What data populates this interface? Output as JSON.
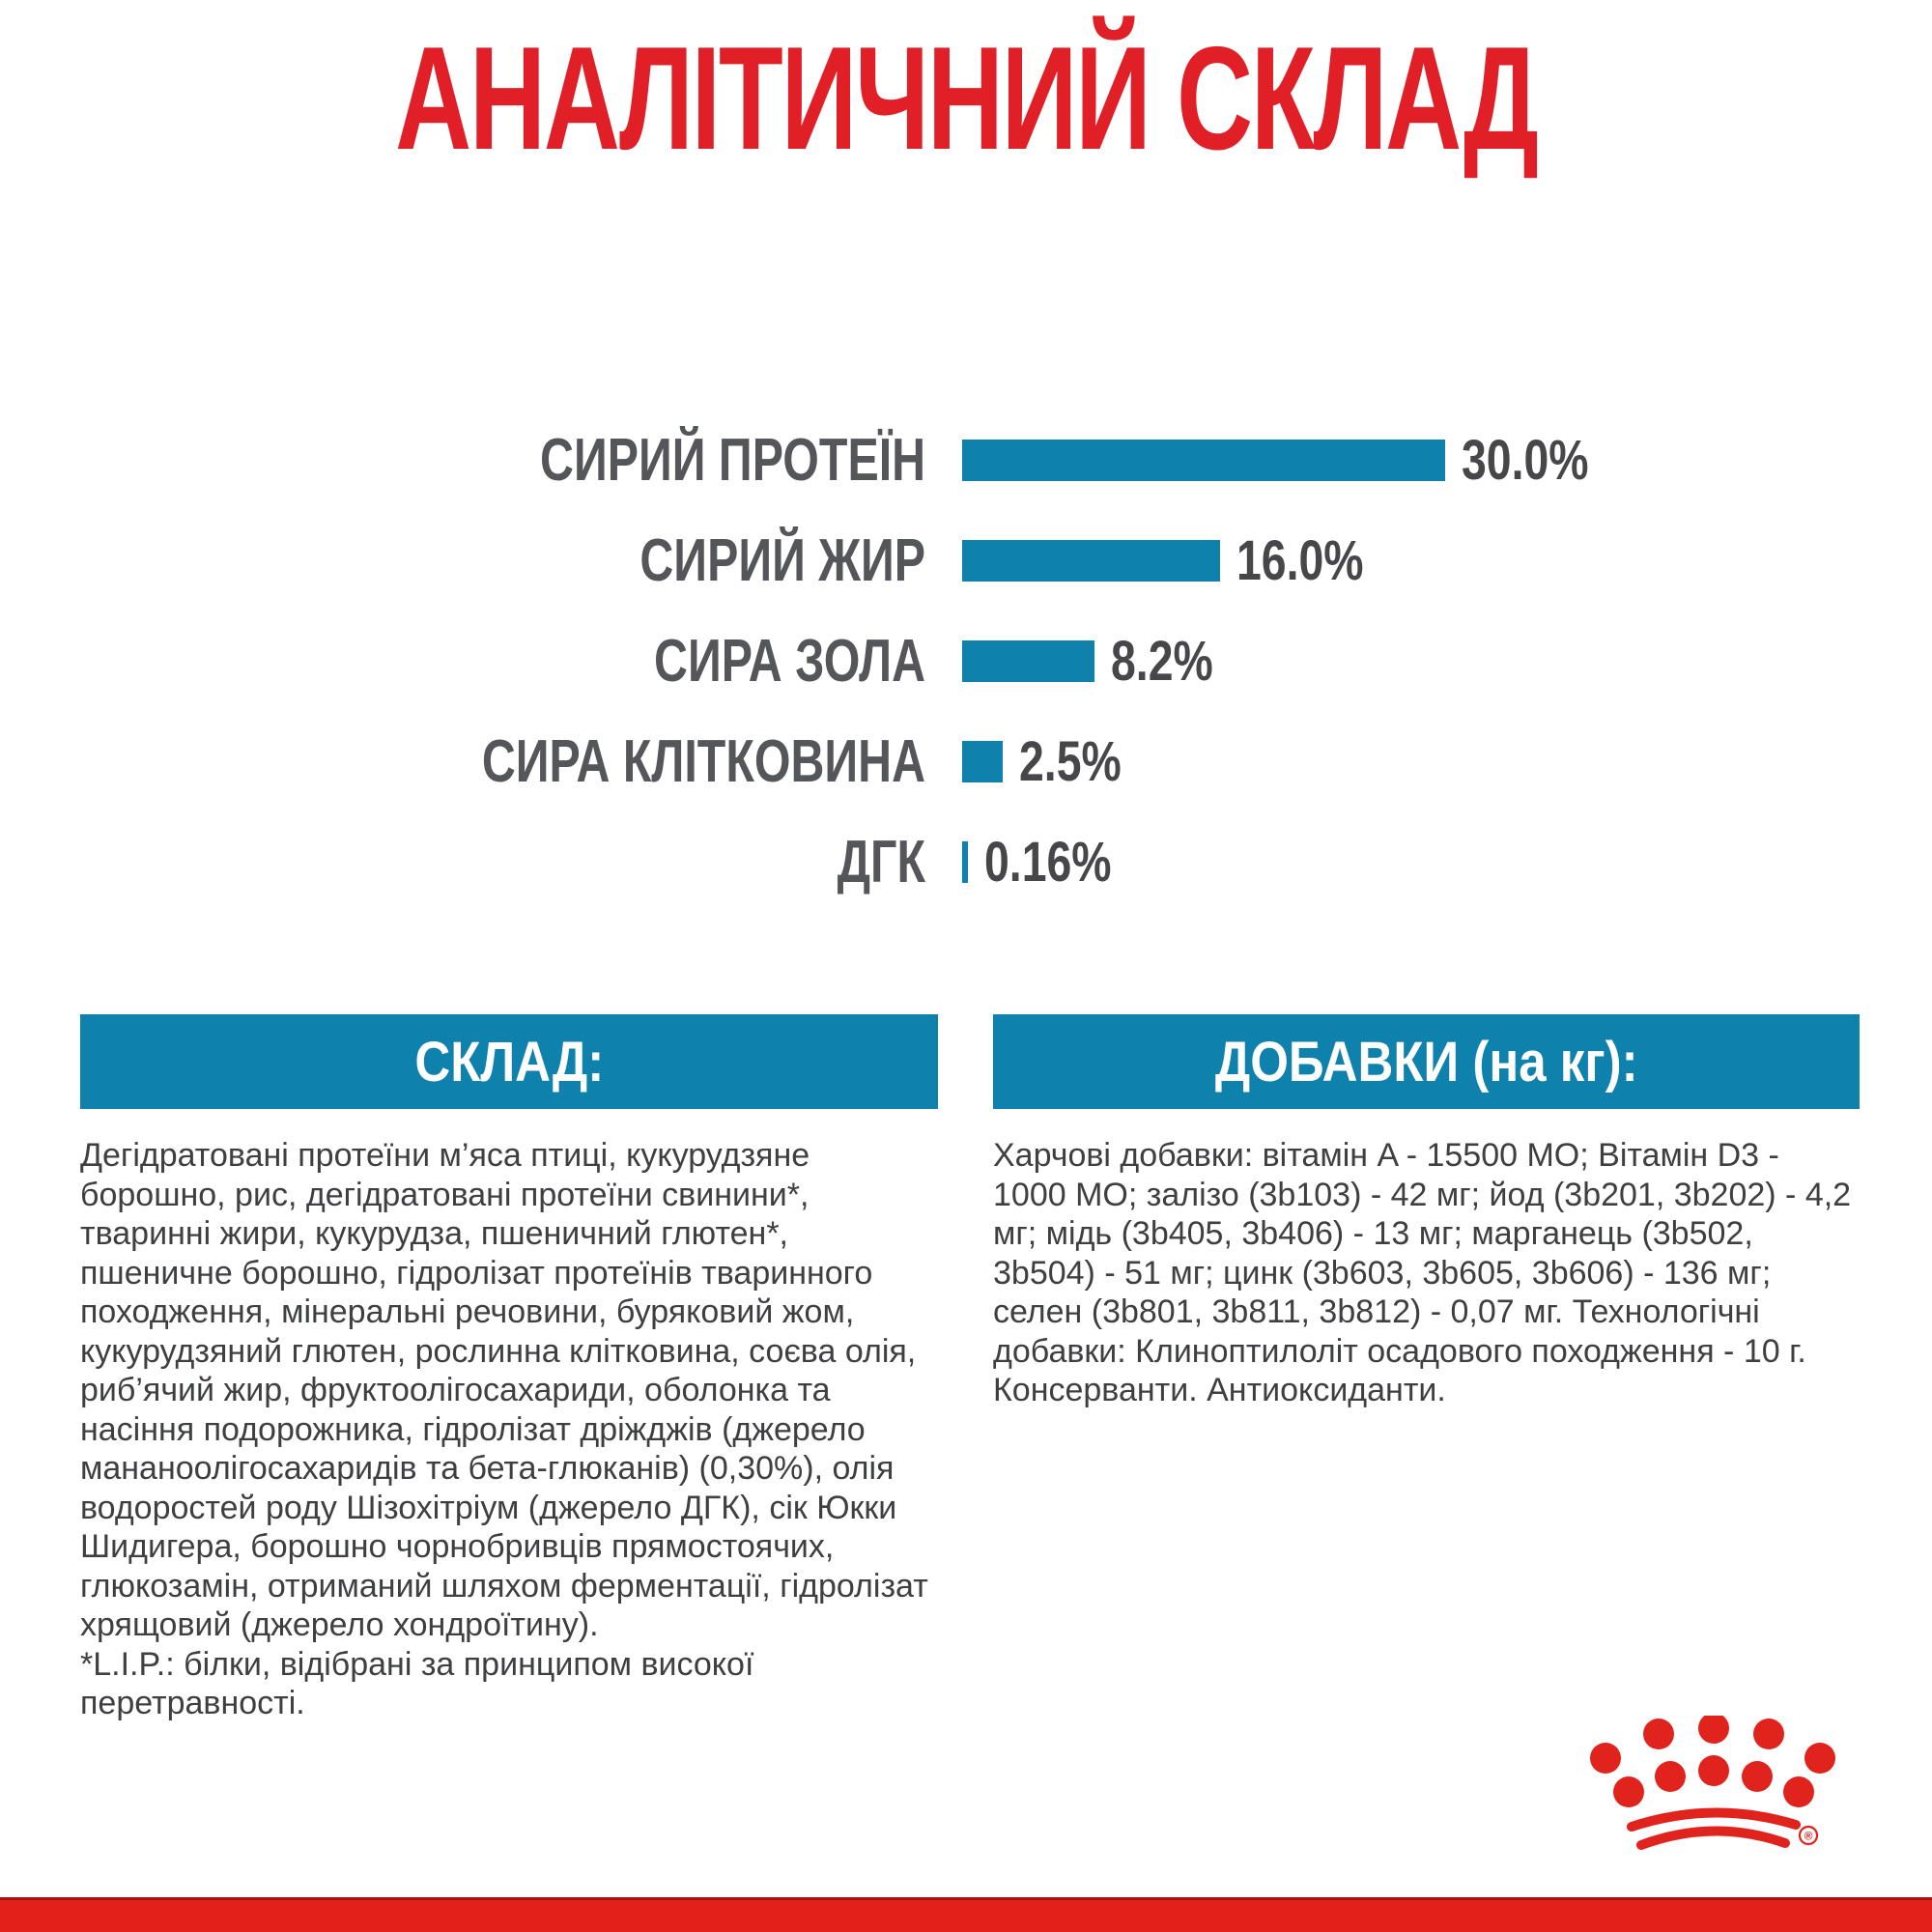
{
  "page": {
    "title": "АНАЛІТИЧНИЙ СКЛАД",
    "title_color": "#e01f26"
  },
  "chart_data": {
    "type": "bar",
    "orientation": "horizontal",
    "title": "АНАЛІТИЧНИЙ СКЛАД",
    "categories": [
      "СИРИЙ ПРОТЕЇН",
      "СИРИЙ ЖИР",
      "СИРА ЗОЛА",
      "СИРА КЛІТКОВИНА",
      "ДГК"
    ],
    "values": [
      30.0,
      16.0,
      8.2,
      2.5,
      0.16
    ],
    "value_labels": [
      "30.0%",
      "16.0%",
      "8.2%",
      "2.5%",
      "0.16%"
    ],
    "xlim": [
      0,
      30
    ],
    "grid": false,
    "legend": false,
    "bar_color": "#0f81ad",
    "label_color": "#55565a"
  },
  "composition_panel": {
    "header": "СКЛАД:",
    "header_bg": "#0f81ad",
    "body": "Дегідратовані протеїни м’яса птиці, кукурудзяне борошно, рис, дегідратовані протеїни свинини*, тваринні жири, кукурудза, пшеничний глютен*, пшеничне борошно, гідролізат протеїнів тваринного походження, мінеральні речовини, буряковий жом, кукурудзяний глютен, рослинна клітковина, соєва олія, риб’ячий жир, фруктоолігосахариди, оболонка та насіння подорожника, гідролізат дріжджів (джерело мананоолігосахаридів та бета-глюканів) (0,30%), олія водоростей роду Шізохітріум (джерело ДГК), сік Юкки Шидигера, борошно чорнобривців прямостоячих, глюкозамін, отриманий шляхом ферментації, гідролізат хрящовий (джерело хондроїтину).",
    "footnote": "*L.I.P.: білки, відібрані за принципом високої перетравності."
  },
  "additives_panel": {
    "header": "ДОБАВКИ (на кг):",
    "header_bg": "#0f81ad",
    "body": "Харчові добавки: вітамін A - 15500 МО; Вітамін D3 - 1000 МО; залізо (3b103) - 42 мг; йод (3b201, 3b202) - 4,2 мг; мідь (3b405, 3b406) - 13 мг; марганець (3b502, 3b504) - 51 мг; цинк (3b603, 3b605, 3b606) - 136 мг; селен (3b801, 3b811, 3b812) - 0,07 мг. Технологічні добавки: Клиноптилоліт осадового походження - 10 г. Консерванти. Антиоксиданти."
  },
  "branding": {
    "logo": "royal-canin-crown",
    "logo_color": "#e0231c",
    "registered_mark": "®"
  },
  "footer": {
    "bar_color": "#e32019"
  }
}
